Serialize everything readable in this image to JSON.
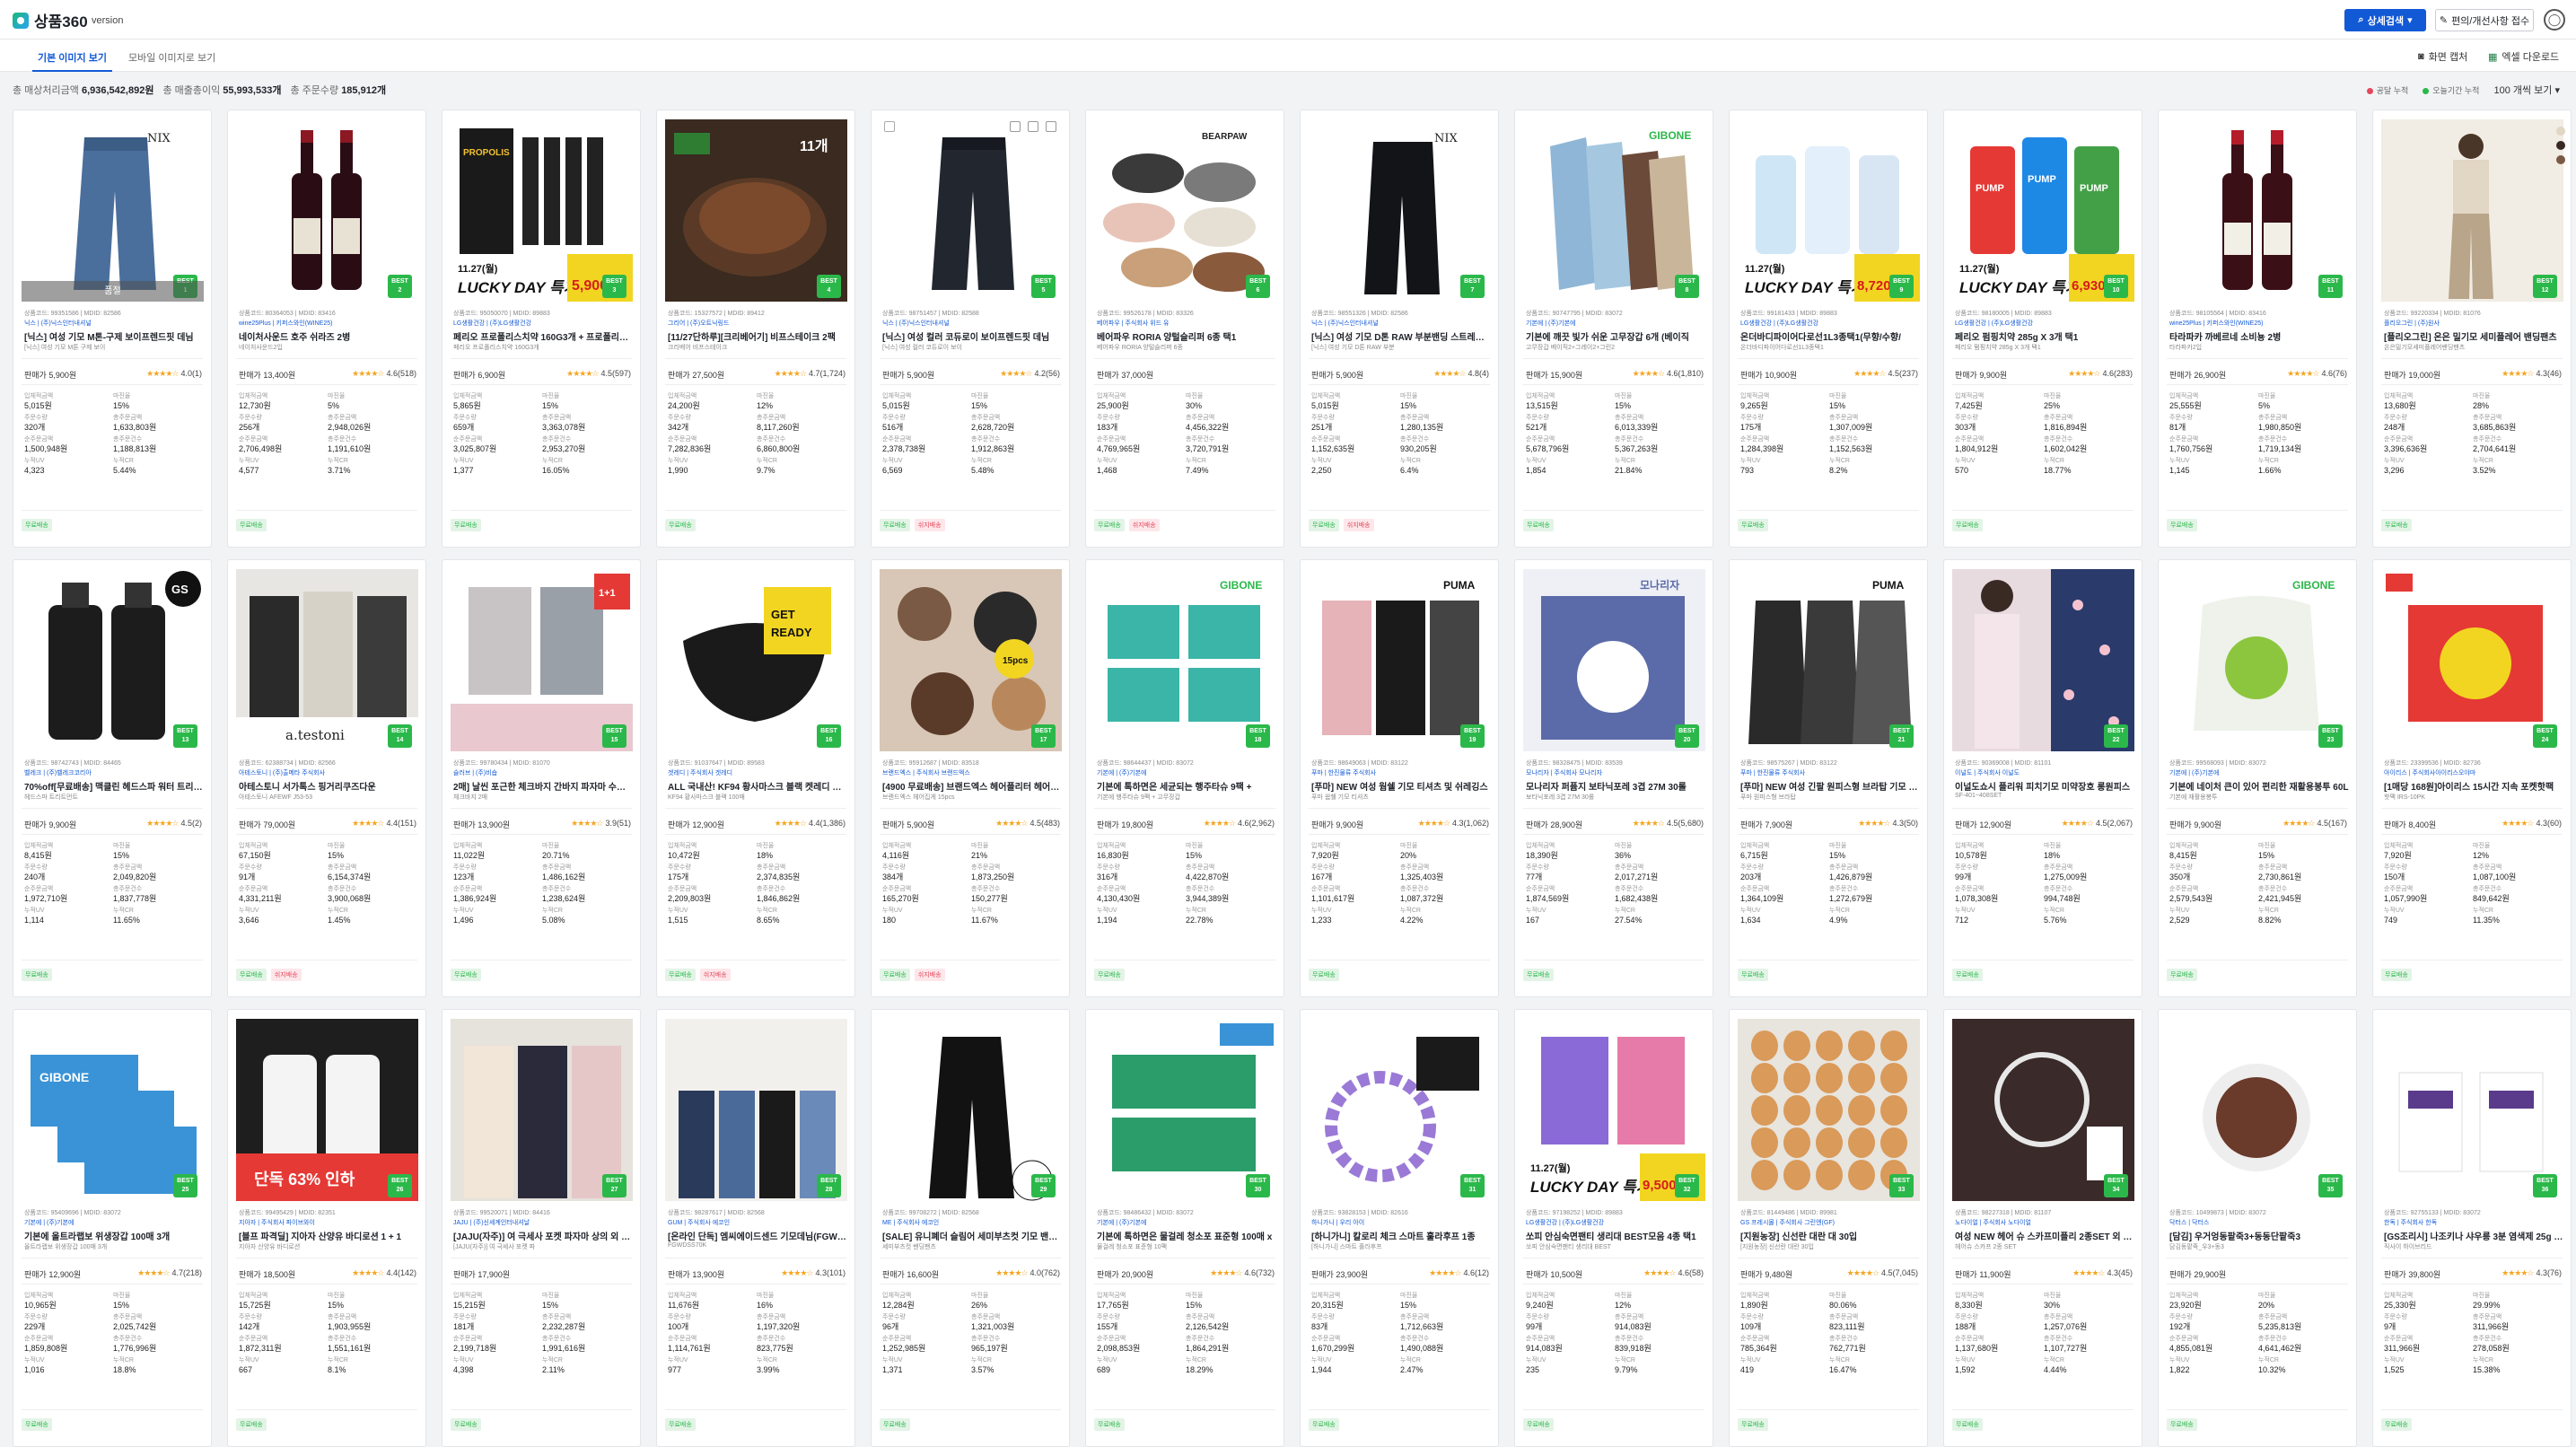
{
  "app": {
    "name": "상품360",
    "version_label": "version"
  },
  "header": {
    "sort_button": "상세검색",
    "report_button": "편의/개선사항 접수",
    "avatar_icon": "user-icon"
  },
  "tabs": [
    {
      "label": "기본 이미지 보기",
      "active": true
    },
    {
      "label": "모바일 이미지로 보기",
      "active": false
    }
  ],
  "toolbar": {
    "capture": "화면 캡처",
    "excel": "엑셀 다운로드"
  },
  "stats": {
    "sales_label": "총 매상처리금액",
    "sales_value": "6,936,542,892원",
    "profit_label": "총 매출총이익",
    "profit_value": "55,993,533개",
    "orders_label": "총 주문수량",
    "orders_value": "185,912개"
  },
  "legend": {
    "item1": "공달 누적",
    "item2": "오늘기간 누적",
    "per_page": "100 개씩 보기",
    "color1": "#e5465a",
    "color2": "#2bb84a"
  },
  "metric_labels": {
    "a": "입체적금액",
    "b": "마진율",
    "c": "주문수량",
    "d": "총주문금액",
    "e": "순주문금액",
    "f": "총주문건수",
    "g": "누적UV",
    "h": "누적CR"
  },
  "badge_labels": {
    "free": "무료배송",
    "delivery": "쉬지배송"
  },
  "overlay_label": "품절",
  "products": [
    {
      "hdr": "상품코드: 99351586 | MDID: 82586",
      "cat": "닉스 | (주)닉스인터내셔널",
      "title": "[닉스] 여성 기모 M톤-구제 보이프렌드핏 데님",
      "sub": "[닉스] 여성 기모 M톤 구제 보이",
      "price": "판매가 5,900원",
      "stars": "★★★★☆",
      "rate": "4.0(1)",
      "best": "1",
      "m": [
        "5,015원",
        "15%",
        "320개",
        "1,633,803원",
        "1,500,948원",
        "1,188,813원",
        "4,323",
        "5.44%"
      ],
      "bdg": [
        "free"
      ],
      "vis": "jeans",
      "overlay": true
    },
    {
      "hdr": "상품코드: 80364053 | MDID: 83416",
      "cat": "wine25Plus | 키퍼스와인(WINE25)",
      "title": "네이처사운드 호주 쉬라즈 2병",
      "sub": "네이처사운드2입",
      "price": "판매가 13,400원",
      "stars": "★★★★☆",
      "rate": "4.6(518)",
      "best": "2",
      "m": [
        "12,730원",
        "5%",
        "256개",
        "2,948,026원",
        "2,706,498원",
        "1,191,610원",
        "4,577",
        "3.71%"
      ],
      "bdg": [
        "free"
      ],
      "vis": "wine"
    },
    {
      "hdr": "상품코드: 95050070 | MDID: 89883",
      "cat": "LG생활건강 | (주)LG생활건강",
      "title": "페리오 프로폴리스치약 160G3개 + 프로폴리스칫솔",
      "sub": "페리오 프로폴리스치약 160G3개",
      "price": "판매가 6,900원",
      "stars": "★★★★☆",
      "rate": "4.5(597)",
      "best": "3",
      "m": [
        "5,865원",
        "15%",
        "659개",
        "3,363,078원",
        "3,025,807원",
        "2,953,270원",
        "1,377",
        "16.05%"
      ],
      "bdg": [
        "free"
      ],
      "vis": "toothpaste",
      "promo": "5,900원"
    },
    {
      "hdr": "상품코드: 15327572 | MDID: 89412",
      "cat": "그리어 | (주)오트닉링드",
      "title": "[11/27단하루][크리베어기] 비프스테이크 2팩",
      "sub": "크리베어 비프스테이크",
      "price": "판매가 27,500원",
      "stars": "★★★★☆",
      "rate": "4.7(1,724)",
      "best": "4",
      "m": [
        "24,200원",
        "12%",
        "342개",
        "8,117,260원",
        "7,282,836원",
        "6,860,800원",
        "1,990",
        "9.7%"
      ],
      "bdg": [
        "free"
      ],
      "vis": "steak"
    },
    {
      "hdr": "상품코드: 98751457 | MDID: 82588",
      "cat": "닉스 | (주)닉스인터내셔널",
      "title": "[닉스] 여성 컬러 코듀로이 보이프렌드핏 데님",
      "sub": "[닉스] 여성 컬러 코듀로이 보이",
      "price": "판매가 5,900원",
      "stars": "★★★★☆",
      "rate": "4.2(56)",
      "best": "5",
      "m": [
        "5,015원",
        "15%",
        "516개",
        "2,628,720원",
        "2,378,738원",
        "1,912,863원",
        "6,569",
        "5.48%"
      ],
      "bdg": [
        "free",
        "delivery"
      ],
      "vis": "jeans-dark",
      "tools": true
    },
    {
      "hdr": "상품코드: 99526178 | MDID: 83326",
      "cat": "베어파우 | 주식회사 위드 유",
      "title": "베어파우 RORIA 양털슬리퍼 6종 택1",
      "sub": "베어파우 RORIA 양털슬리퍼 6종",
      "price": "판매가 37,000원",
      "stars": "",
      "rate": "",
      "best": "6",
      "m": [
        "25,900원",
        "30%",
        "183개",
        "4,456,322원",
        "4,769,965원",
        "3,720,791원",
        "1,468",
        "7.49%"
      ],
      "bdg": [
        "free",
        "delivery"
      ],
      "vis": "slippers"
    },
    {
      "hdr": "상품코드: 98551326 | MDID: 82586",
      "cat": "닉스 | (주)닉스인터내셔널",
      "title": "[닉스] 여성 기모 D톤 RAW 부분밴딩 스트레이트",
      "sub": "[닉스] 여성 기모 D톤 RAW 부분",
      "price": "판매가 5,900원",
      "stars": "★★★★☆",
      "rate": "4.8(4)",
      "best": "7",
      "m": [
        "5,015원",
        "15%",
        "251개",
        "1,280,135원",
        "1,152,635원",
        "930,205원",
        "2,250",
        "6.4%"
      ],
      "bdg": [
        "free",
        "delivery"
      ],
      "vis": "jeans-black"
    },
    {
      "hdr": "상품코드: 90747795 | MDID: 83072",
      "cat": "기본에 | (주)기본에",
      "title": "기본에 깨끗 빛가 쉬운 고무장갑 6개 (베이직",
      "sub": "고무장갑 베이직2+그레이2+그린2",
      "price": "판매가 15,900원",
      "stars": "★★★★☆",
      "rate": "4.6(1,810)",
      "best": "8",
      "m": [
        "13,515원",
        "15%",
        "521개",
        "6,013,339원",
        "5,678,796원",
        "5,367,263원",
        "1,854",
        "21.84%"
      ],
      "bdg": [
        "free"
      ],
      "vis": "gloves"
    },
    {
      "hdr": "상품코드: 99181433 | MDID: 89883",
      "cat": "LG생활건강 | (주)LG생활건강",
      "title": "온더바디파이어다로선1L3종택1(무향/수향/",
      "sub": "온더바디파이어다로선1L3종택1",
      "price": "판매가 10,900원",
      "stars": "★★★★☆",
      "rate": "4.5(237)",
      "best": "9",
      "m": [
        "9,265원",
        "15%",
        "175개",
        "1,307,009원",
        "1,284,398원",
        "1,152,563원",
        "793",
        "8.2%"
      ],
      "bdg": [
        "free"
      ],
      "vis": "lotion",
      "promo": "8,720원"
    },
    {
      "hdr": "상품코드: 98180005 | MDID: 89883",
      "cat": "LG생활건강 | (주)LG생활건강",
      "title": "페리오 펌핑치약 285g X 3개 택1",
      "sub": "페리오 펌핑치약 285g X 3개 택1",
      "price": "판매가 9,900원",
      "stars": "★★★★☆",
      "rate": "4.6(283)",
      "best": "10",
      "m": [
        "7,425원",
        "25%",
        "303개",
        "1,816,894원",
        "1,804,912원",
        "1,602,042원",
        "570",
        "18.77%"
      ],
      "bdg": [
        "free"
      ],
      "vis": "pump",
      "promo": "6,930원"
    },
    {
      "hdr": "상품코드: 98105564 | MDID: 83416",
      "cat": "wine25Plus | 키퍼스와인(WINE25)",
      "title": "타라파카 까베르네 소비뇽 2병",
      "sub": "타라파카2입",
      "price": "판매가 26,900원",
      "stars": "★★★★☆",
      "rate": "4.6(76)",
      "best": "11",
      "m": [
        "25,555원",
        "5%",
        "81개",
        "1,980,850원",
        "1,760,756원",
        "1,719,134원",
        "1,145",
        "1.66%"
      ],
      "bdg": [
        "free"
      ],
      "vis": "wine2"
    },
    {
      "hdr": "상품코드: 99220334 | MDID: 81076",
      "cat": "플리오그린 | (주)원사",
      "title": "[플리오그린] 온은 밀기모 세미플레어 밴딩팬츠",
      "sub": "온은밀기모세미플레어밴딩팬츠",
      "price": "판매가 19,000원",
      "stars": "★★★★☆",
      "rate": "4.3(46)",
      "best": "12",
      "m": [
        "13,680원",
        "28%",
        "248개",
        "3,685,863원",
        "3,396,636원",
        "2,704,641원",
        "3,296",
        "3.52%"
      ],
      "bdg": [
        "free"
      ],
      "vis": "model-beige",
      "swatch": true
    },
    {
      "hdr": "상품코드: 98742743 | MDID: 84465",
      "cat": "벨레크 | (주)벨레크코리아",
      "title": "70%off[무료배송] 맥클린 헤드스파 워터 트리트먼트",
      "sub": "헤드스파 트리트먼트",
      "price": "판매가 9,900원",
      "stars": "★★★★☆",
      "rate": "4.5(2)",
      "best": "13",
      "m": [
        "8,415원",
        "15%",
        "240개",
        "2,049,820원",
        "1,972,710원",
        "1,837,778원",
        "1,114",
        "11.65%"
      ],
      "bdg": [
        "free"
      ],
      "vis": "bottles-black"
    },
    {
      "hdr": "상품코드: 62388734 | MDID: 82566",
      "cat": "아테스토니 | (주)출메타 주식회사",
      "title": "아테스토니 서가톡스 핑거리쿠즈다운",
      "sub": "아테스토니 AFEWF J53-53",
      "price": "판매가 79,000원",
      "stars": "★★★★☆",
      "rate": "4.4(151)",
      "best": "14",
      "m": [
        "67,150원",
        "15%",
        "91개",
        "6,154,374원",
        "4,331,211원",
        "3,900,068원",
        "3,646",
        "1.45%"
      ],
      "bdg": [
        "free",
        "delivery"
      ],
      "vis": "coats"
    },
    {
      "hdr": "상품코드: 99780434 | MDID: 81070",
      "cat": "슬러브 | (주)비숍",
      "title": "2매] 날씬 포근한 체크바지 간바지 파자마 수면바지",
      "sub": "체크바지 2매",
      "price": "판매가 13,900원",
      "stars": "★★★★☆",
      "rate": "3.9(51)",
      "best": "15",
      "m": [
        "11,022원",
        "20.71%",
        "123개",
        "1,486,162원",
        "1,386,924원",
        "1,238,624원",
        "1,496",
        "5.08%"
      ],
      "bdg": [
        "free"
      ],
      "vis": "pants"
    },
    {
      "hdr": "상품코드: 91037647 | MDID: 89583",
      "cat": "겟레디 | 주식회사 겟레디",
      "title": "ALL 국내산! KF94 황사마스크 블랙 켓레디 마스크",
      "sub": "KF94 황사마스크 블랙 100매",
      "price": "판매가 12,900원",
      "stars": "★★★★☆",
      "rate": "4.4(1,386)",
      "best": "16",
      "m": [
        "10,472원",
        "18%",
        "175개",
        "2,374,835원",
        "2,209,803원",
        "1,846,862원",
        "1,515",
        "8.65%"
      ],
      "bdg": [
        "free",
        "delivery"
      ],
      "vis": "mask"
    },
    {
      "hdr": "상품코드: 95912687 | MDID: 83518",
      "cat": "브랜드엑스 | 주식회사 브랜드엑스",
      "title": "[4900 무료배송] 브랜드엑스 헤어플리터 헤어집게",
      "sub": "브랜드엑스 헤어집게 15pcs",
      "price": "판매가 5,900원",
      "stars": "★★★★☆",
      "rate": "4.5(483)",
      "best": "17",
      "m": [
        "4,116원",
        "21%",
        "384개",
        "1,873,250원",
        "165,270원",
        "150,277원",
        "180",
        "11.67%"
      ],
      "bdg": [
        "free",
        "delivery"
      ],
      "vis": "hairclips"
    },
    {
      "hdr": "상품코드: 98644437 | MDID: 83072",
      "cat": "기본에 | (주)기본에",
      "title": "기본에 톡하면은 세균되는 행주타슈 9팩 +",
      "sub": "기본에 행주타슈 9팩 + 고무장갑",
      "price": "판매가 19,800원",
      "stars": "★★★★☆",
      "rate": "4.6(2,962)",
      "best": "18",
      "m": [
        "16,830원",
        "15%",
        "316개",
        "4,422,870원",
        "4,130,430원",
        "3,944,389원",
        "1,194",
        "22.78%"
      ],
      "bdg": [
        "free"
      ],
      "vis": "wipes"
    },
    {
      "hdr": "상품코드: 98649063 | MDID: 83122",
      "cat": "푸마 | 한진물류 주식회사",
      "title": "[푸마] NEW 여성 웜쉘 기모 티셔츠 및 쉬레깅스",
      "sub": "푸마 웜쉘 기모 티셔츠",
      "price": "판매가 9,900원",
      "stars": "★★★★☆",
      "rate": "4.3(1,062)",
      "best": "19",
      "m": [
        "7,920원",
        "20%",
        "167개",
        "1,325,403원",
        "1,101,617원",
        "1,087,372원",
        "1,233",
        "4.22%"
      ],
      "bdg": [
        "free"
      ],
      "vis": "puma-tops"
    },
    {
      "hdr": "상품코드: 98328475 | MDID: 83539",
      "cat": "모나리자 | 주식회사 모나리자",
      "title": "모나리자 퍼퓸지 보타닉포레 3겹 27M 30롤",
      "sub": "보타닉포레 3겹 27M 30롤",
      "price": "판매가 28,900원",
      "stars": "★★★★☆",
      "rate": "4.5(5,680)",
      "best": "20",
      "m": [
        "18,390원",
        "36%",
        "77개",
        "2,017,271원",
        "1,874,569원",
        "1,682,438원",
        "167",
        "27.54%"
      ],
      "bdg": [
        "free"
      ],
      "vis": "tissue"
    },
    {
      "hdr": "상품코드: 98575267 | MDID: 83122",
      "cat": "푸마 | 한진물류 주식회사",
      "title": "[푸마] NEW 여성 긴팔 원피스형 브라탑 기모 웰빙",
      "sub": "푸마 원피스형 브라탑",
      "price": "판매가 7,900원",
      "stars": "★★★★☆",
      "rate": "4.3(50)",
      "best": "21",
      "m": [
        "6,715원",
        "15%",
        "203개",
        "1,426,879원",
        "1,364,109원",
        "1,272,679원",
        "1,634",
        "4.9%"
      ],
      "bdg": [
        "free"
      ],
      "vis": "dresses"
    },
    {
      "hdr": "상품코드: 90369008 | MDID: 81101",
      "cat": "이널도 | 주식회사 이널도",
      "title": "이널도쇼시 플리워 피치기모 미약장호 롱원피스",
      "sub": "SF-401~408SET",
      "price": "판매가 12,900원",
      "stars": "★★★★☆",
      "rate": "4.5(2,067)",
      "best": "22",
      "m": [
        "10,578원",
        "18%",
        "99개",
        "1,275,009원",
        "1,078,308원",
        "994,748원",
        "712",
        "5.76%"
      ],
      "bdg": [
        "free"
      ],
      "vis": "floral"
    },
    {
      "hdr": "상품코드: 99568093 | MDID: 83072",
      "cat": "기본에 | (주)기본에",
      "title": "기본에 네이처 큰이 있어 편리한 재활용봉투 60L",
      "sub": "기본에 재활용봉투",
      "price": "판매가 9,900원",
      "stars": "★★★★☆",
      "rate": "4.5(167)",
      "best": "23",
      "m": [
        "8,415원",
        "15%",
        "350개",
        "2,730,861원",
        "2,579,543원",
        "2,421,945원",
        "2,529",
        "8.82%"
      ],
      "bdg": [
        "free"
      ],
      "vis": "bag"
    },
    {
      "hdr": "상품코드: 23399536 | MDID: 82736",
      "cat": "아이리스 | 주식회사아이리스오야마",
      "title": "[1매당 168원]아이리스 15시간 지속 포켓핫팩",
      "sub": "핫팩 IRS-10PK",
      "price": "판매가 8,400원",
      "stars": "★★★★☆",
      "rate": "4.3(60)",
      "best": "24",
      "m": [
        "7,920원",
        "12%",
        "150개",
        "1,087,100원",
        "1,057,990원",
        "849,642원",
        "749",
        "11.35%"
      ],
      "bdg": [
        "free"
      ],
      "vis": "hotpack"
    },
    {
      "hdr": "상품코드: 95409696 | MDID: 83072",
      "cat": "기본에 | (주)기본에",
      "title": "기본에 올트라랩보 위생장갑 100매 3개",
      "sub": "올트라랩보 위생장갑 100매 3개",
      "price": "판매가 12,900원",
      "stars": "★★★★☆",
      "rate": "4.7(218)",
      "best": "25",
      "m": [
        "10,965원",
        "15%",
        "229개",
        "2,025,742원",
        "1,859,808원",
        "1,776,996원",
        "1,016",
        "18.8%"
      ],
      "bdg": [
        "free"
      ],
      "vis": "boxes"
    },
    {
      "hdr": "상품코드: 99495429 | MDID: 82351",
      "cat": "지아자 | 주식회사 파이브와이",
      "title": "[블프 파격딜] 지아자 산양유 바디로션 1 + 1",
      "sub": "지아자 산양유 바디로션",
      "price": "판매가 18,500원",
      "stars": "★★★★☆",
      "rate": "4.4(142)",
      "best": "26",
      "m": [
        "15,725원",
        "15%",
        "142개",
        "1,903,955원",
        "1,872,311원",
        "1,551,161원",
        "667",
        "8.1%"
      ],
      "bdg": [
        "free"
      ],
      "vis": "lotion-big"
    },
    {
      "hdr": "상품코드: 99520071 | MDID: 84416",
      "cat": "JAJU | (주)신세계인터내셔날",
      "title": "[JAJU(자주)] 여 극세사 포켓 파자마 상의 외 2종",
      "sub": "[JAJU(자주)] 여 극세사 포켓 파",
      "price": "판매가 17,900원",
      "stars": "",
      "rate": "",
      "best": "27",
      "m": [
        "15,215원",
        "15%",
        "181개",
        "2,232,287원",
        "2,199,718원",
        "1,991,616원",
        "4,398",
        "2.11%"
      ],
      "bdg": [
        "free"
      ],
      "vis": "pajama"
    },
    {
      "hdr": "상품코드: 98287617 | MDID: 82568",
      "cat": "GUM | 주식회사 에코인",
      "title": "[온라인 단독] 엠씨에이드센드 기모데님(FGWDSS70)",
      "sub": "FGWDSS70K",
      "price": "판매가 13,900원",
      "stars": "★★★★☆",
      "rate": "4.3(101)",
      "best": "28",
      "m": [
        "11,676원",
        "16%",
        "100개",
        "1,197,320원",
        "1,114,761원",
        "823,775원",
        "977",
        "3.99%"
      ],
      "bdg": [
        "free"
      ],
      "vis": "jeans-models"
    },
    {
      "hdr": "상품코드: 99708272 | MDID: 82568",
      "cat": "ME | 주식회사 에코인",
      "title": "[SALE] 유니폐더 슬림어 세미부츠컷 기모 밴딩팬츠",
      "sub": "세미부츠컷 밴딩팬츠",
      "price": "판매가 16,600원",
      "stars": "★★★★☆",
      "rate": "4.0(762)",
      "best": "29",
      "m": [
        "12,284원",
        "26%",
        "96개",
        "1,321,003원",
        "1,252,985원",
        "965,197원",
        "1,371",
        "3.57%"
      ],
      "bdg": [
        "free"
      ],
      "vis": "bootcut"
    },
    {
      "hdr": "상품코드: 98486432 | MDID: 83072",
      "cat": "기본에 | (주)기본에",
      "title": "기본에 톡하면은 물걸레 청소포 표준형 100매 x",
      "sub": "물걸레 청소포 표준형 10팩",
      "price": "판매가 20,900원",
      "stars": "★★★★☆",
      "rate": "4.6(732)",
      "best": "30",
      "m": [
        "17,765원",
        "15%",
        "155개",
        "2,126,542원",
        "2,098,853원",
        "1,864,291원",
        "689",
        "18.29%"
      ],
      "bdg": [
        "free"
      ],
      "vis": "wipes2"
    },
    {
      "hdr": "상품코드: 93828153 | MDID: 82616",
      "cat": "하니가니 | 우리 아이",
      "title": "[하니가니] 칼로리 체크 스마트 훌라후프 1종",
      "sub": "[하니가니] 스마트 훌라후프",
      "price": "판매가 23,900원",
      "stars": "★★★★☆",
      "rate": "4.6(12)",
      "best": "31",
      "m": [
        "20,315원",
        "15%",
        "83개",
        "1,712,663원",
        "1,670,299원",
        "1,490,088원",
        "1,944",
        "2.47%"
      ],
      "bdg": [
        "free"
      ],
      "vis": "hoop"
    },
    {
      "hdr": "상품코드: 97198252 | MDID: 89883",
      "cat": "LG생활건강 | (주)LG생활건강",
      "title": "쏘피 안심숙면팬티 생리대 BEST모음 4종 택1",
      "sub": "쏘피 안심숙면팬티 생리대 BEST",
      "price": "판매가 10,500원",
      "stars": "★★★★☆",
      "rate": "4.6(58)",
      "best": "32",
      "m": [
        "9,240원",
        "12%",
        "99개",
        "914,083원",
        "914,083원",
        "839,918원",
        "235",
        "9.79%"
      ],
      "bdg": [
        "free"
      ],
      "vis": "pads",
      "promo": "9,500원"
    },
    {
      "hdr": "상품코드: 81449486 | MDID: 89981",
      "cat": "GS 프레시몰 | 주식회사 그린엔(GF)",
      "title": "[지원농장] 신선란 대란 대 30입",
      "sub": "[지원농장] 신선란 대란 30입",
      "price": "판매가 9,480원",
      "stars": "★★★★☆",
      "rate": "4.5(7,045)",
      "best": "33",
      "m": [
        "1,890원",
        "80.06%",
        "109개",
        "823,111원",
        "785,364원",
        "762,771원",
        "419",
        "16.47%"
      ],
      "bdg": [
        "free"
      ],
      "vis": "eggs"
    },
    {
      "hdr": "상품코드: 98227318 | MDID: 81107",
      "cat": "노다이얼 | 주식회사 노다이얼",
      "title": "여성 NEW 헤어 슈 스카프미플리 2종SET 외 10종",
      "sub": "헤어슈 스카프 2종 SET",
      "price": "판매가 11,900원",
      "stars": "★★★★☆",
      "rate": "4.3(45)",
      "best": "34",
      "m": [
        "8,330원",
        "30%",
        "188개",
        "1,257,076원",
        "1,137,680원",
        "1,107,727원",
        "1,592",
        "4.44%"
      ],
      "bdg": [
        "free"
      ],
      "vis": "jewelry"
    },
    {
      "hdr": "상품코드: 10499873 | MDID: 83072",
      "cat": "닥터스 | 닥터스",
      "title": "[담김] 우거엉동팥죽3+동동단팥죽3",
      "sub": "담김동팥죽_우3+동3",
      "price": "판매가 29,900원",
      "stars": "",
      "rate": "",
      "best": "35",
      "m": [
        "23,920원",
        "20%",
        "192개",
        "5,235,813원",
        "4,855,081원",
        "4,641,462원",
        "1,822",
        "10.32%"
      ],
      "bdg": [
        "free"
      ],
      "vis": "porridge"
    },
    {
      "hdr": "상품코드: 92755133 | MDID: 83072",
      "cat": "한독 | 주식회사 한독",
      "title": "[GS조리시] 나조키나 샤우릉 3분 염색제 25g 2개",
      "sub": "직사이 하이브리드",
      "price": "판매가 39,800원",
      "stars": "★★★★☆",
      "rate": "4.3(76)",
      "best": "36",
      "m": [
        "25,330원",
        "29.99%",
        "9개",
        "311,966원",
        "311,966원",
        "278,058원",
        "1,525",
        "15.38%"
      ],
      "bdg": [
        "free"
      ],
      "vis": "dye"
    }
  ]
}
